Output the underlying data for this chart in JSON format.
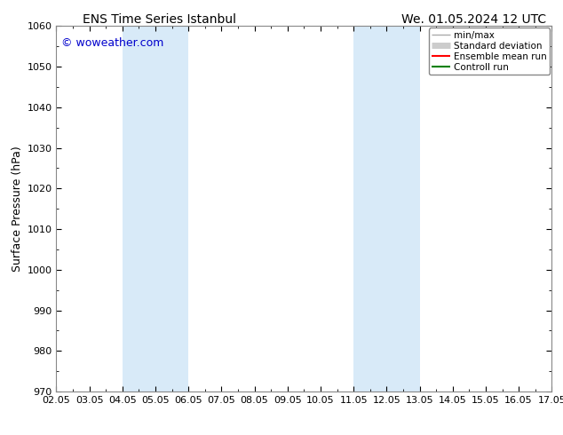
{
  "title_left": "ENS Time Series Istanbul",
  "title_right": "We. 01.05.2024 12 UTC",
  "ylabel": "Surface Pressure (hPa)",
  "ylim": [
    970,
    1060
  ],
  "yticks": [
    970,
    980,
    990,
    1000,
    1010,
    1020,
    1030,
    1040,
    1050,
    1060
  ],
  "xlim": [
    0,
    15
  ],
  "xtick_labels": [
    "02.05",
    "03.05",
    "04.05",
    "05.05",
    "06.05",
    "07.05",
    "08.05",
    "09.05",
    "10.05",
    "11.05",
    "12.05",
    "13.05",
    "14.05",
    "15.05",
    "16.05",
    "17.05"
  ],
  "xtick_positions": [
    0,
    1,
    2,
    3,
    4,
    5,
    6,
    7,
    8,
    9,
    10,
    11,
    12,
    13,
    14,
    15
  ],
  "shaded_bands": [
    {
      "x_start": 2.0,
      "x_end": 4.0,
      "color": "#d8eaf8"
    },
    {
      "x_start": 9.0,
      "x_end": 11.0,
      "color": "#d8eaf8"
    }
  ],
  "watermark_text": "© woweather.com",
  "watermark_color": "#0000cc",
  "watermark_fontsize": 9,
  "background_color": "#ffffff",
  "legend_items": [
    {
      "label": "min/max",
      "color": "#aaaaaa",
      "lw": 1.0
    },
    {
      "label": "Standard deviation",
      "color": "#cccccc",
      "lw": 5
    },
    {
      "label": "Ensemble mean run",
      "color": "#ff0000",
      "lw": 1.5
    },
    {
      "label": "Controll run",
      "color": "#008000",
      "lw": 1.5
    }
  ],
  "tick_fontsize": 8,
  "label_fontsize": 9,
  "title_fontsize": 10,
  "border_color": "#888888"
}
